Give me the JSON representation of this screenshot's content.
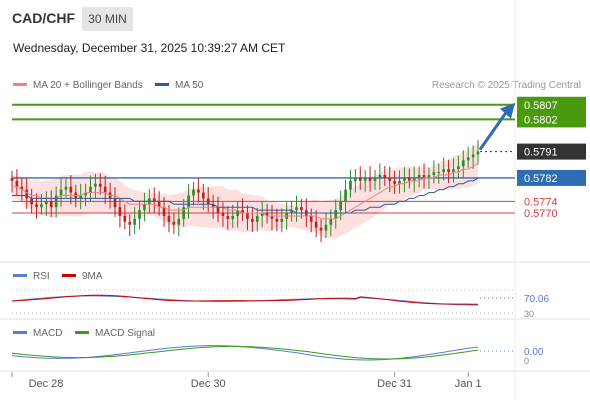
{
  "header": {
    "symbol": "CAD/CHF",
    "timeframe": "30 MIN",
    "datetime": "Wednesday, December 31, 2025 10:39:27 AM CET",
    "credit": "Research © 2025 Trading Central"
  },
  "legend": {
    "main": [
      {
        "label": "MA 20 + Bollinger Bands",
        "color": "#f08080"
      },
      {
        "label": "MA 50",
        "color": "#2e5a9c"
      }
    ],
    "rsi": [
      {
        "label": "RSI",
        "color": "#5b7bd5"
      },
      {
        "label": "9MA",
        "color": "#d00000"
      }
    ],
    "macd": [
      {
        "label": "MACD",
        "color": "#5b7bd5"
      },
      {
        "label": "MACD Signal",
        "color": "#3a9a1a"
      }
    ]
  },
  "colors": {
    "target": "#4a9a10",
    "pivot": "#2e6db4",
    "current": "#333333",
    "support": "#d04040",
    "bollinger": "#fde0e0",
    "up_candle": "#2e8b2e",
    "down_candle": "#c02020"
  },
  "chart_data": {
    "type": "candlestick",
    "y_axis": {
      "min": 0.5756,
      "max": 0.581
    },
    "levels": [
      {
        "value": 0.5807,
        "label": "0.5807",
        "kind": "target"
      },
      {
        "value": 0.5802,
        "label": "0.5802",
        "kind": "target"
      },
      {
        "value": 0.5791,
        "label": "0.5791",
        "kind": "current"
      },
      {
        "value": 0.5782,
        "label": "0.5782",
        "kind": "pivot"
      },
      {
        "value": 0.5774,
        "label": "0.5774",
        "kind": "support"
      },
      {
        "value": 0.577,
        "label": "0.5770",
        "kind": "support"
      }
    ],
    "x_labels": [
      "Dec 28",
      "Dec 30",
      "Dec 31",
      "Jan 1"
    ],
    "x_label_index": [
      0,
      40,
      78,
      93
    ],
    "n_bars": 96,
    "closes": [
      0.5781,
      0.5779,
      0.5778,
      0.5775,
      0.5773,
      0.5772,
      0.5773,
      0.5774,
      0.5772,
      0.5776,
      0.5778,
      0.5779,
      0.5777,
      0.5775,
      0.5776,
      0.5777,
      0.5779,
      0.578,
      0.5779,
      0.5777,
      0.5775,
      0.5772,
      0.5769,
      0.5767,
      0.5766,
      0.5768,
      0.5771,
      0.5773,
      0.5775,
      0.5774,
      0.5772,
      0.5769,
      0.5767,
      0.5766,
      0.5768,
      0.5772,
      0.5776,
      0.5778,
      0.5777,
      0.5775,
      0.5773,
      0.5772,
      0.577,
      0.5769,
      0.5768,
      0.5769,
      0.5771,
      0.577,
      0.5768,
      0.5767,
      0.5769,
      0.577,
      0.5769,
      0.5768,
      0.5767,
      0.5768,
      0.577,
      0.5771,
      0.5772,
      0.5771,
      0.5769,
      0.5767,
      0.5765,
      0.5764,
      0.5766,
      0.5768,
      0.5771,
      0.5774,
      0.5778,
      0.5781,
      0.5782,
      0.5781,
      0.5782,
      0.5781,
      0.5782,
      0.5783,
      0.5782,
      0.5781,
      0.578,
      0.5781,
      0.5782,
      0.5781,
      0.5782,
      0.5783,
      0.5782,
      0.5783,
      0.5784,
      0.5784,
      0.5785,
      0.5784,
      0.5785,
      0.5786,
      0.5788,
      0.5789,
      0.579,
      0.5791
    ],
    "ma20": [
      0.5779,
      0.5779,
      0.5778,
      0.5777,
      0.5776,
      0.5776,
      0.5775,
      0.5775,
      0.5775,
      0.5775,
      0.5776,
      0.5776,
      0.5776,
      0.5776,
      0.5776,
      0.5777,
      0.5777,
      0.5777,
      0.5777,
      0.5777,
      0.5776,
      0.5776,
      0.5775,
      0.5774,
      0.5773,
      0.5773,
      0.5773,
      0.5773,
      0.5773,
      0.5773,
      0.5772,
      0.5772,
      0.5771,
      0.5771,
      0.5771,
      0.5771,
      0.5772,
      0.5772,
      0.5772,
      0.5772,
      0.5772,
      0.5772,
      0.5772,
      0.5772,
      0.5771,
      0.5771,
      0.5771,
      0.577,
      0.577,
      0.577,
      0.577,
      0.577,
      0.5769,
      0.5769,
      0.5769,
      0.5769,
      0.5769,
      0.5769,
      0.5769,
      0.5769,
      0.5769,
      0.5769,
      0.5769,
      0.5768,
      0.5768,
      0.5768,
      0.5768,
      0.5769,
      0.577,
      0.5771,
      0.5772,
      0.5773,
      0.5774,
      0.5775,
      0.5776,
      0.5777,
      0.5778,
      0.5779,
      0.5779,
      0.578,
      0.578,
      0.5781,
      0.5781,
      0.5781,
      0.5782,
      0.5782,
      0.5782,
      0.5783,
      0.5783,
      0.5783,
      0.5784,
      0.5784,
      0.5785,
      0.5785,
      0.5786,
      0.5787
    ],
    "ma50": [
      0.5776,
      0.5776,
      0.5776,
      0.5776,
      0.5775,
      0.5775,
      0.5775,
      0.5775,
      0.5775,
      0.5775,
      0.5775,
      0.5775,
      0.5775,
      0.5775,
      0.5775,
      0.5775,
      0.5775,
      0.5775,
      0.5775,
      0.5775,
      0.5775,
      0.5775,
      0.5775,
      0.5775,
      0.5775,
      0.5774,
      0.5774,
      0.5774,
      0.5774,
      0.5774,
      0.5774,
      0.5774,
      0.5774,
      0.5773,
      0.5773,
      0.5773,
      0.5773,
      0.5773,
      0.5773,
      0.5773,
      0.5773,
      0.5773,
      0.5772,
      0.5772,
      0.5772,
      0.5772,
      0.5772,
      0.5772,
      0.5772,
      0.5772,
      0.5771,
      0.5771,
      0.5771,
      0.5771,
      0.5771,
      0.5771,
      0.5771,
      0.5771,
      0.577,
      0.577,
      0.577,
      0.577,
      0.577,
      0.577,
      0.577,
      0.577,
      0.577,
      0.577,
      0.577,
      0.577,
      0.5771,
      0.5771,
      0.5771,
      0.5772,
      0.5772,
      0.5772,
      0.5773,
      0.5773,
      0.5773,
      0.5774,
      0.5774,
      0.5775,
      0.5775,
      0.5776,
      0.5776,
      0.5777,
      0.5777,
      0.5778,
      0.5778,
      0.5779,
      0.5779,
      0.578,
      0.578,
      0.5781,
      0.5781,
      0.5782
    ],
    "bb_width": 0.0006,
    "rsi": {
      "value_label": "70.06",
      "min_label": "30",
      "range": [
        30,
        70
      ]
    },
    "macd": {
      "value_label": "0.00",
      "min_label": "0"
    }
  }
}
